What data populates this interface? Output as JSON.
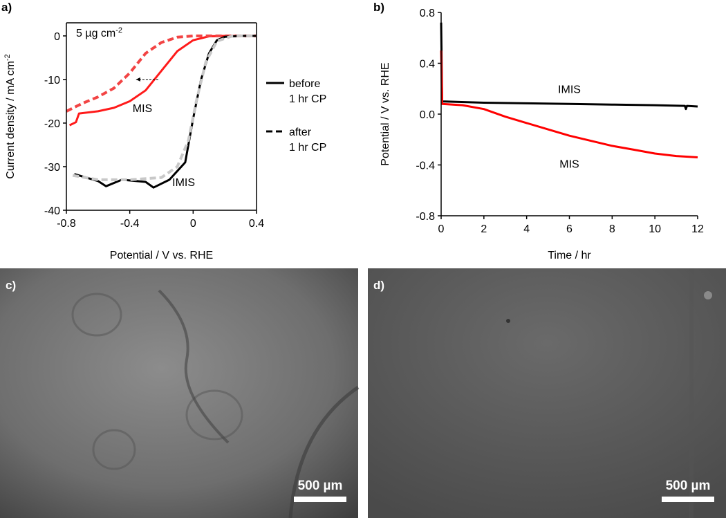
{
  "chart_data": [
    {
      "type": "line",
      "panel_label": "a)",
      "loading": {
        "text": "5 µg cm",
        "sup": "-2"
      },
      "x_label": {
        "text": "Potential / V vs. RHE"
      },
      "y_label": {
        "text": "Current density / mA cm",
        "sup": "-2"
      },
      "xlim": [
        -0.8,
        0.4
      ],
      "xticks": [
        -0.8,
        -0.4,
        0,
        0.4
      ],
      "ylim": [
        -40,
        3
      ],
      "yticks": [
        0,
        -10,
        -20,
        -30,
        -40
      ],
      "grid": false,
      "annotations": [
        "MIS",
        "IMIS"
      ],
      "legend": [
        {
          "lines": [
            "before",
            "1 hr CP"
          ],
          "dash": "solid"
        },
        {
          "lines": [
            "after",
            "1 hr CP"
          ],
          "dash": "dashed"
        }
      ],
      "series": [
        {
          "color": "#ff1a1a",
          "dash": "solid",
          "x": [
            -0.78,
            -0.74,
            -0.72,
            -0.6,
            -0.5,
            -0.4,
            -0.3,
            -0.2,
            -0.1,
            0,
            0.1,
            0.2,
            0.4
          ],
          "values": [
            -20.5,
            -19.8,
            -17.8,
            -17.3,
            -16.5,
            -15,
            -12.5,
            -8,
            -3.5,
            -1,
            -0.1,
            0,
            0
          ]
        },
        {
          "color": "#f24444",
          "dash": "dashed",
          "x": [
            -0.8,
            -0.7,
            -0.6,
            -0.5,
            -0.4,
            -0.3,
            -0.2,
            -0.1,
            0,
            0.4
          ],
          "values": [
            -17.3,
            -15.5,
            -14,
            -12,
            -8.5,
            -4,
            -1.5,
            -0.3,
            0,
            0
          ]
        },
        {
          "color": "#000000",
          "dash": "solid",
          "x": [
            -0.75,
            -0.6,
            -0.55,
            -0.45,
            -0.3,
            -0.25,
            -0.15,
            -0.05,
            0,
            0.05,
            0.1,
            0.15,
            0.2,
            0.3,
            0.4
          ],
          "values": [
            -31.7,
            -33.3,
            -34.5,
            -33,
            -33.5,
            -34.8,
            -33,
            -29,
            -19,
            -10,
            -4,
            -1,
            -0.2,
            0,
            0
          ]
        },
        {
          "color": "#c8c8c8",
          "dash": "dashed",
          "x": [
            -0.76,
            -0.6,
            -0.4,
            -0.2,
            -0.1,
            -0.03,
            0.02,
            0.08,
            0.15,
            0.25,
            0.4
          ],
          "values": [
            -32,
            -33,
            -33,
            -32.5,
            -30,
            -24,
            -15,
            -6,
            -1.2,
            0,
            0
          ]
        }
      ]
    },
    {
      "type": "line",
      "panel_label": "b)",
      "x_label": {
        "text": "Time / hr"
      },
      "y_label": {
        "text": "Potential / V vs. RHE"
      },
      "xlim": [
        0,
        12
      ],
      "xticks": [
        0,
        2,
        4,
        6,
        8,
        10,
        12
      ],
      "ylim": [
        -0.8,
        0.8
      ],
      "yticks": [
        0.8,
        0.4,
        {
          "value": 0,
          "label": "0.0"
        },
        -0.4,
        -0.8
      ],
      "grid": false,
      "annotations": [
        "IMIS",
        "MIS"
      ],
      "series": [
        {
          "color": "#000000",
          "dash": "solid",
          "x": [
            0,
            0.05,
            2,
            4,
            6,
            8,
            10,
            11.4,
            11.45,
            11.5,
            12
          ],
          "values": [
            0.72,
            0.1,
            0.09,
            0.085,
            0.08,
            0.075,
            0.07,
            0.065,
            0.04,
            0.065,
            0.06
          ]
        },
        {
          "color": "#ff0000",
          "dash": "solid",
          "x": [
            0,
            0.05,
            1,
            2,
            3,
            4,
            5,
            6,
            7,
            8,
            9,
            10,
            11,
            12
          ],
          "values": [
            0.5,
            0.08,
            0.07,
            0.04,
            -0.02,
            -0.07,
            -0.12,
            -0.17,
            -0.21,
            -0.25,
            -0.28,
            -0.31,
            -0.33,
            -0.34
          ]
        }
      ]
    }
  ],
  "images": [
    {
      "label": "c)",
      "scale_bar": "500 µm"
    },
    {
      "label": "d)",
      "scale_bar": "500 µm"
    }
  ]
}
